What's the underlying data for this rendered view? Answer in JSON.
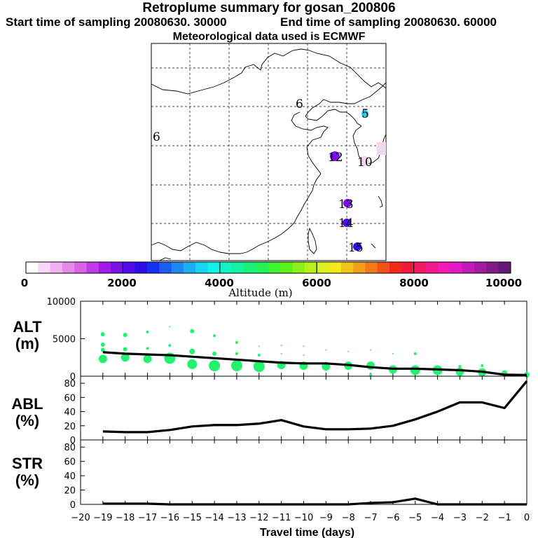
{
  "header": {
    "title": "Retroplume summary for gosan_200806",
    "start_label": "Start time of sampling 20080630. 30000",
    "end_label": "End time of sampling 20080630. 60000",
    "met_label": "Meteorological data used is ECMWF"
  },
  "map": {
    "labels": [
      {
        "text": "6",
        "lon_idx": 0
      },
      {
        "text": "6",
        "lon_idx": 1
      },
      {
        "text": "5",
        "lon_idx": 2
      },
      {
        "text": "12",
        "lon_idx": 3
      },
      {
        "text": "10",
        "lon_idx": 4
      },
      {
        "text": "13",
        "lon_idx": 5
      },
      {
        "text": "14",
        "lon_idx": 6
      },
      {
        "text": "15",
        "lon_idx": 7
      }
    ]
  },
  "colorbar": {
    "ticks": [
      "0",
      "2000",
      "4000",
      "6000",
      "8000",
      "10000"
    ],
    "label": "Altitude (m)",
    "colors": [
      "#ffffff",
      "#f7d6f7",
      "#efb0ef",
      "#e78ae7",
      "#d962e6",
      "#c23ae6",
      "#a21be8",
      "#7a11e8",
      "#4f0ae8",
      "#2c0de8",
      "#1530f0",
      "#1c5cf0",
      "#1e87f2",
      "#1cb0f2",
      "#17d4f2",
      "#12f2e8",
      "#12f2c4",
      "#14f29e",
      "#18f27a",
      "#22f256",
      "#3ef232",
      "#5ef21a",
      "#8af21a",
      "#b6f21a",
      "#dcf21a",
      "#f2e81a",
      "#f2c41a",
      "#f2a01a",
      "#f27a1a",
      "#f2521a",
      "#f22a1a",
      "#f21a3a",
      "#f21a62",
      "#f21a8a",
      "#f21ab2",
      "#e21ac8",
      "#c21ab8",
      "#a21aa0",
      "#821a88",
      "#621a70"
    ]
  },
  "panels": {
    "alt_label": "ALT\n(m)",
    "abl_label": "ABL\n(%)",
    "str_label": "STR\n(%)",
    "x_axis_label": "Travel time (days)"
  },
  "chart_data": [
    {
      "type": "line",
      "title": "ALT (m)",
      "xlabel": "Travel time (days)",
      "ylabel": "ALT (m)",
      "xlim": [
        -20,
        0
      ],
      "ylim": [
        0,
        10000
      ],
      "yticks": [
        0,
        5000,
        10000
      ],
      "x": [
        -19,
        -18,
        -17,
        -16,
        -15,
        -14,
        -13,
        -12,
        -11,
        -10,
        -9,
        -8,
        -7,
        -6,
        -5,
        -4,
        -3,
        -2,
        -1,
        0
      ],
      "values": [
        3200,
        3000,
        2900,
        2800,
        2600,
        2400,
        2200,
        2000,
        1800,
        1700,
        1700,
        1500,
        1200,
        1000,
        1000,
        900,
        800,
        600,
        200,
        150
      ],
      "scatter": [
        {
          "x": -19,
          "y": 2300,
          "r": 6
        },
        {
          "x": -19,
          "y": 3500,
          "r": 3
        },
        {
          "x": -19,
          "y": 4200,
          "r": 3
        },
        {
          "x": -19,
          "y": 5600,
          "r": 3
        },
        {
          "x": -18,
          "y": 2500,
          "r": 6
        },
        {
          "x": -18,
          "y": 3600,
          "r": 3
        },
        {
          "x": -18,
          "y": 5500,
          "r": 3
        },
        {
          "x": -17,
          "y": 2300,
          "r": 6
        },
        {
          "x": -17,
          "y": 3700,
          "r": 2
        },
        {
          "x": -17,
          "y": 5900,
          "r": 2
        },
        {
          "x": -16,
          "y": 2400,
          "r": 8
        },
        {
          "x": -16,
          "y": 4100,
          "r": 2
        },
        {
          "x": -16,
          "y": 6600,
          "r": 1
        },
        {
          "x": -15,
          "y": 1600,
          "r": 7
        },
        {
          "x": -15,
          "y": 3300,
          "r": 4
        },
        {
          "x": -15,
          "y": 6000,
          "r": 3
        },
        {
          "x": -14,
          "y": 1400,
          "r": 8
        },
        {
          "x": -14,
          "y": 3000,
          "r": 3
        },
        {
          "x": -14,
          "y": 5400,
          "r": 2
        },
        {
          "x": -13,
          "y": 1400,
          "r": 8
        },
        {
          "x": -13,
          "y": 3000,
          "r": 2
        },
        {
          "x": -13,
          "y": 4500,
          "r": 2
        },
        {
          "x": -12,
          "y": 1300,
          "r": 8
        },
        {
          "x": -12,
          "y": 2800,
          "r": 2
        },
        {
          "x": -12,
          "y": 4000,
          "r": 1
        },
        {
          "x": -11,
          "y": 1500,
          "r": 6
        },
        {
          "x": -11,
          "y": 3000,
          "r": 1
        },
        {
          "x": -11,
          "y": 4100,
          "r": 1
        },
        {
          "x": -10,
          "y": 1400,
          "r": 6
        },
        {
          "x": -10,
          "y": 2800,
          "r": 1
        },
        {
          "x": -10,
          "y": 4000,
          "r": 1
        },
        {
          "x": -9,
          "y": 1300,
          "r": 6
        },
        {
          "x": -9,
          "y": 3500,
          "r": 1
        },
        {
          "x": -8,
          "y": 1400,
          "r": 6
        },
        {
          "x": -8,
          "y": 3300,
          "r": 1
        },
        {
          "x": -7,
          "y": 1400,
          "r": 6
        },
        {
          "x": -7,
          "y": 200,
          "r": 2
        },
        {
          "x": -7,
          "y": 3500,
          "r": 1
        },
        {
          "x": -6,
          "y": 900,
          "r": 6
        },
        {
          "x": -6,
          "y": 3000,
          "r": 1
        },
        {
          "x": -5,
          "y": 800,
          "r": 7
        },
        {
          "x": -5,
          "y": 3000,
          "r": 2
        },
        {
          "x": -4,
          "y": 800,
          "r": 7
        },
        {
          "x": -3,
          "y": 600,
          "r": 6
        },
        {
          "x": -3,
          "y": 1300,
          "r": 2
        },
        {
          "x": -2,
          "y": 500,
          "r": 6
        },
        {
          "x": -2,
          "y": 1400,
          "r": 2
        },
        {
          "x": -1,
          "y": 400,
          "r": 4
        },
        {
          "x": 0,
          "y": 200,
          "r": 4
        }
      ]
    },
    {
      "type": "line",
      "title": "ABL (%)",
      "xlabel": "Travel time (days)",
      "ylabel": "ABL (%)",
      "xlim": [
        -20,
        0
      ],
      "ylim": [
        0,
        90
      ],
      "yticks": [
        0,
        20,
        40,
        60,
        80
      ],
      "x": [
        -19,
        -18,
        -17,
        -16,
        -15,
        -14,
        -13,
        -12,
        -11,
        -10,
        -9,
        -8,
        -7,
        -6,
        -5,
        -4,
        -3,
        -2,
        -1,
        0
      ],
      "values": [
        12,
        11,
        11,
        14,
        19,
        21,
        21,
        23,
        28,
        19,
        15,
        15,
        16,
        20,
        29,
        40,
        53,
        53,
        45,
        83
      ]
    },
    {
      "type": "line",
      "title": "STR (%)",
      "xlabel": "Travel time (days)",
      "ylabel": "STR (%)",
      "xlim": [
        -20,
        0
      ],
      "ylim": [
        0,
        90
      ],
      "yticks": [
        0,
        20,
        40,
        60,
        80
      ],
      "x": [
        -19,
        -18,
        -17,
        -16,
        -15,
        -14,
        -13,
        -12,
        -11,
        -10,
        -9,
        -8,
        -7,
        -6,
        -5,
        -4,
        -3,
        -2,
        -1,
        0
      ],
      "values": [
        1,
        1,
        1,
        0,
        0,
        0,
        0,
        0,
        0,
        0,
        0,
        0,
        2,
        3,
        8,
        0,
        0,
        0,
        0,
        0
      ],
      "xticks": [
        -20,
        -19,
        -18,
        -17,
        -16,
        -15,
        -14,
        -13,
        -12,
        -11,
        -10,
        -9,
        -8,
        -7,
        -6,
        -5,
        -4,
        -3,
        -2,
        -1,
        0
      ]
    }
  ]
}
